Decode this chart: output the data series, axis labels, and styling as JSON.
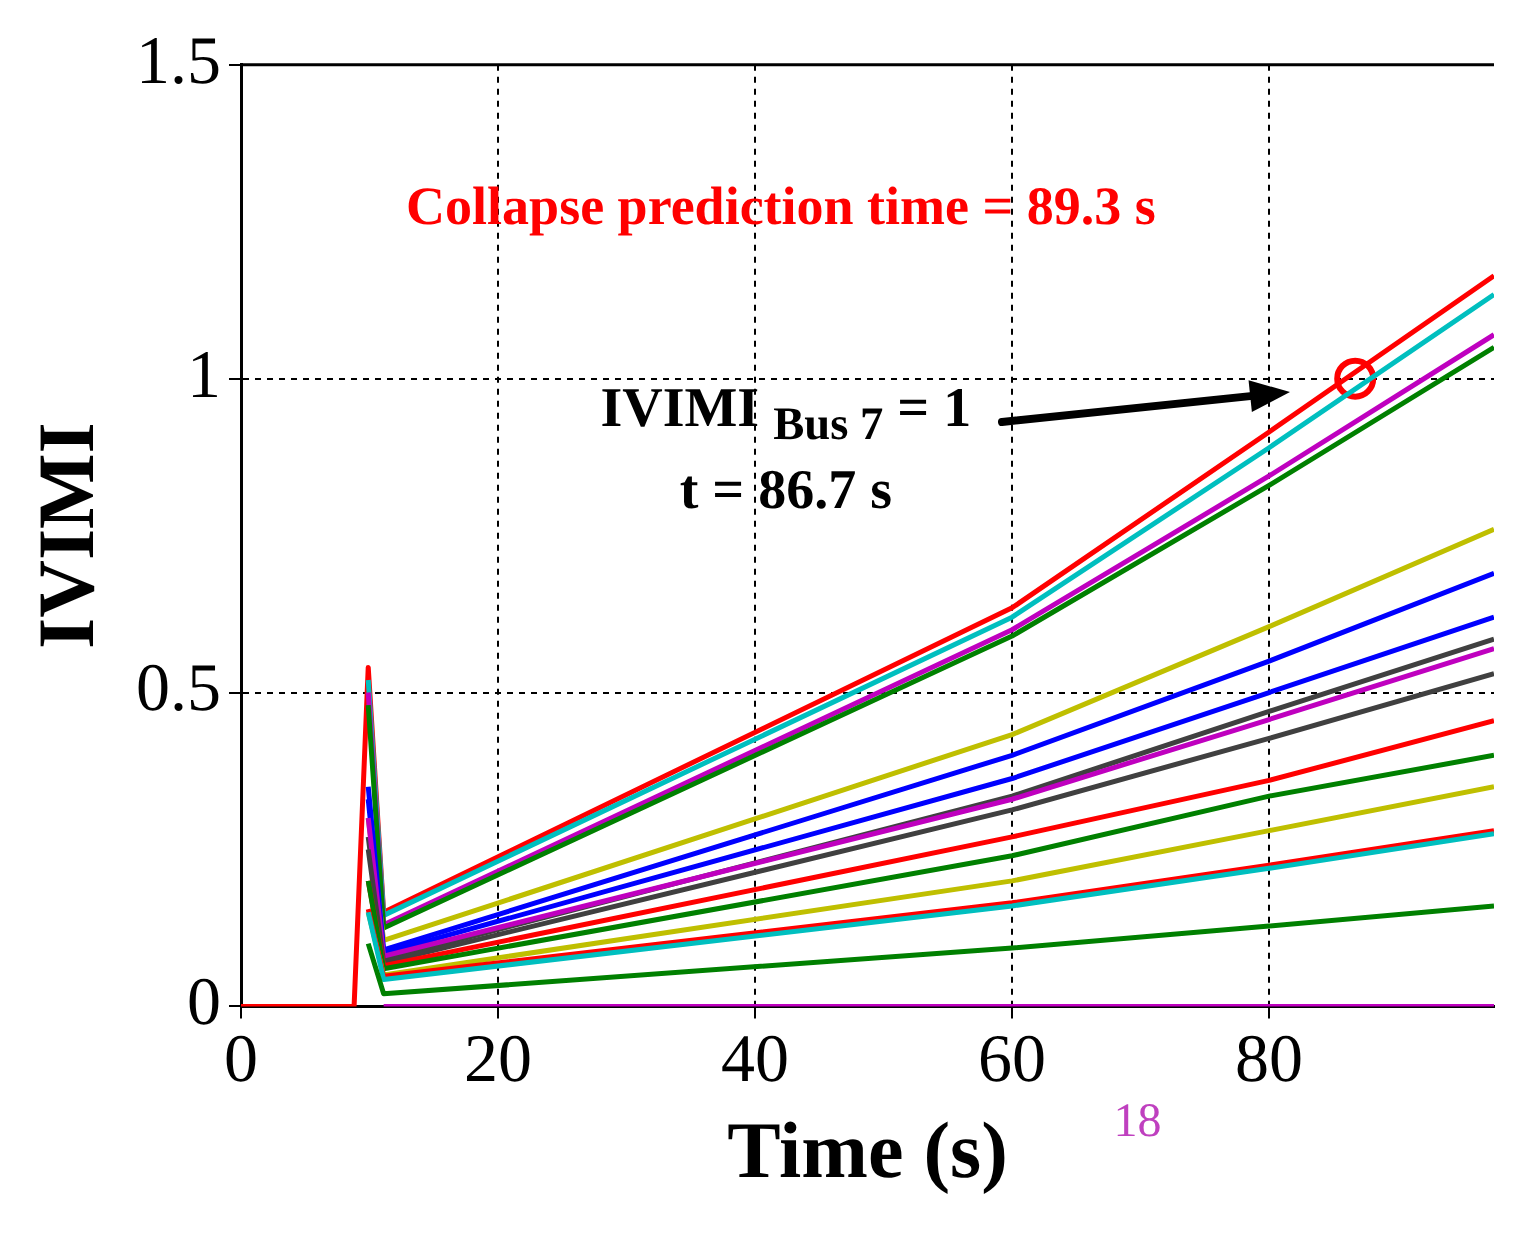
{
  "chart_data": {
    "type": "line",
    "xlabel": "Time (s)",
    "ylabel": "IVIMI",
    "xlim": [
      0,
      97.5
    ],
    "ylim": [
      0,
      1.5
    ],
    "xticks": [
      0,
      20,
      40,
      60,
      80
    ],
    "yticks": [
      0,
      0.5,
      1,
      1.5
    ],
    "grid": true,
    "legend": false,
    "marker": "none",
    "annotations": [
      "Collapse prediction time = 89.3 s",
      "IVIMI $_{Bus 7}$ = 1\nt = 86.7 s",
      "18"
    ],
    "series": [
      {
        "color": "#bf00bf",
        "x": [
          11.1,
          97.5
        ],
        "values": [
          0,
          0
        ]
      },
      {
        "color": "#008000",
        "x": [
          9.9,
          11.1,
          60,
          80,
          97.5
        ],
        "values": [
          0.1,
          0.02,
          0.093,
          0.128,
          0.16
        ]
      },
      {
        "color": "#00bfbf",
        "x": [
          9.9,
          11.1,
          60,
          80,
          97.5
        ],
        "values": [
          0.15,
          0.043,
          0.16,
          0.22,
          0.275
        ]
      },
      {
        "color": "#ff0000",
        "x": [
          9.9,
          11.1,
          60,
          80,
          97.5
        ],
        "values": [
          0.155,
          0.048,
          0.165,
          0.225,
          0.28
        ]
      },
      {
        "color": "#bfbf00",
        "x": [
          9.9,
          11.1,
          60,
          80,
          97.5
        ],
        "values": [
          0.15,
          0.05,
          0.2,
          0.28,
          0.35
        ]
      },
      {
        "color": "#008000",
        "x": [
          9.9,
          11.1,
          60,
          80,
          97.5
        ],
        "values": [
          0.2,
          0.06,
          0.24,
          0.335,
          0.4
        ]
      },
      {
        "color": "#ff0000",
        "x": [
          9.9,
          11.1,
          60,
          80,
          97.5
        ],
        "values": [
          0.2,
          0.065,
          0.27,
          0.36,
          0.455
        ]
      },
      {
        "color": "#404040",
        "x": [
          9.9,
          11.1,
          60,
          80,
          97.5
        ],
        "values": [
          0.25,
          0.07,
          0.313,
          0.427,
          0.53
        ]
      },
      {
        "color": "#bf00bf",
        "x": [
          9.9,
          11.1,
          60,
          80,
          97.5
        ],
        "values": [
          0.3,
          0.08,
          0.33,
          0.457,
          0.57
        ]
      },
      {
        "color": "#404040",
        "x": [
          9.9,
          11.1,
          60,
          80,
          97.5
        ],
        "values": [
          0.27,
          0.075,
          0.335,
          0.47,
          0.585
        ]
      },
      {
        "color": "#0000ff",
        "x": [
          9.9,
          11.1,
          60,
          80,
          97.5
        ],
        "values": [
          0.33,
          0.085,
          0.363,
          0.5,
          0.62
        ]
      },
      {
        "color": "#0000ff",
        "x": [
          9.9,
          11.1,
          60,
          80,
          97.5
        ],
        "values": [
          0.35,
          0.09,
          0.4,
          0.55,
          0.69
        ]
      },
      {
        "color": "#bfbf00",
        "x": [
          9.9,
          11.1,
          60,
          80,
          97.5
        ],
        "values": [
          0.3,
          0.105,
          0.433,
          0.605,
          0.76
        ]
      },
      {
        "color": "#008000",
        "x": [
          9.9,
          11.1,
          60,
          80,
          97.5
        ],
        "values": [
          0.48,
          0.125,
          0.59,
          0.83,
          1.05
        ]
      },
      {
        "color": "#bf00bf",
        "x": [
          9.9,
          11.1,
          60,
          80,
          97.5
        ],
        "values": [
          0.5,
          0.13,
          0.6,
          0.845,
          1.07
        ]
      },
      {
        "color": "#00bfbf",
        "x": [
          9.9,
          11.1,
          60,
          80,
          97.5
        ],
        "values": [
          0.52,
          0.145,
          0.62,
          0.89,
          1.134
        ]
      },
      {
        "color": "#ff0000",
        "x": [
          0,
          8.8,
          9.9,
          11.1,
          60,
          80,
          97.5
        ],
        "values": [
          0,
          0,
          0.54,
          0.15,
          0.635,
          0.915,
          1.164
        ]
      },
      {
        "type": "scatter",
        "marker": "circle",
        "color": "#ff0000",
        "x": [
          86.7
        ],
        "values": [
          1
        ]
      }
    ]
  }
}
